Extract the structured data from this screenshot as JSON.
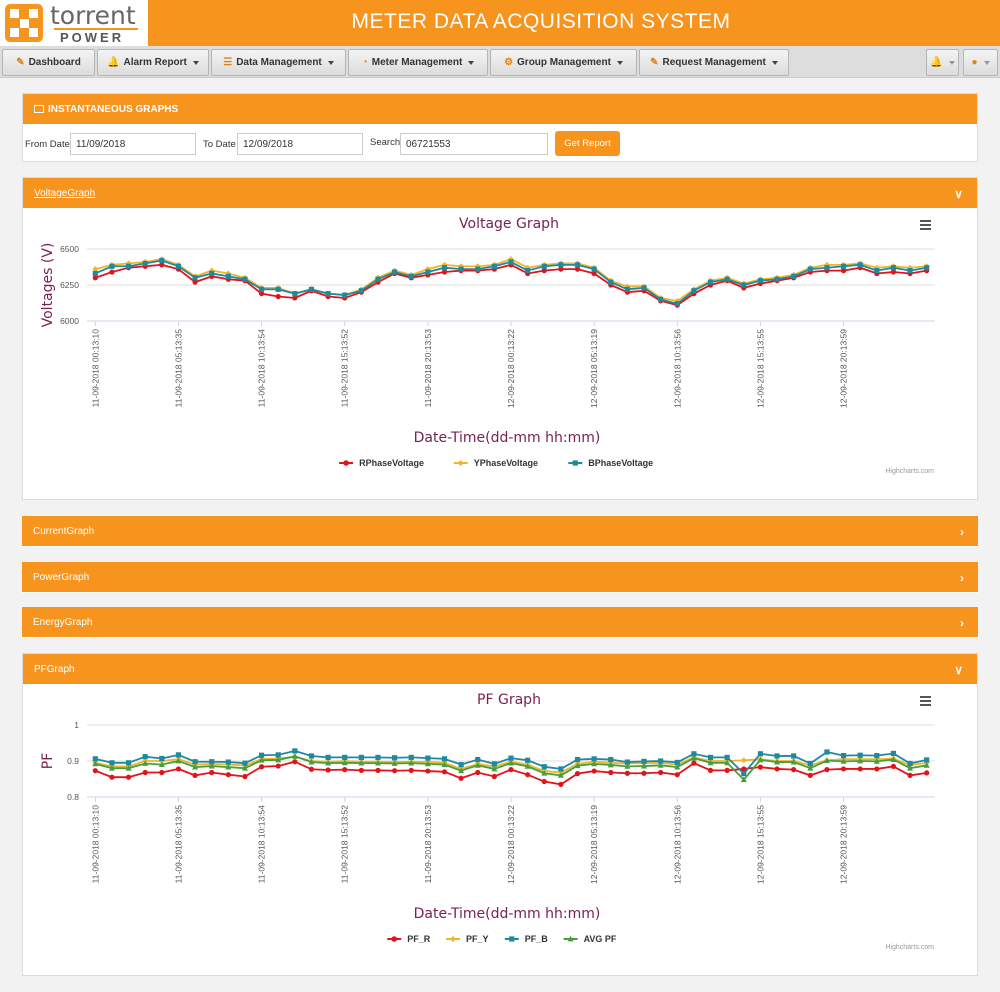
{
  "app": {
    "title": "METER DATA ACQUISITION SYSTEM",
    "logo_word1": "torrent",
    "logo_word2": "POWER"
  },
  "nav": {
    "dashboard": "Dashboard",
    "alarm_report": "Alarm Report",
    "data_management": "Data Management",
    "meter_management": "Meter Management",
    "group_management": "Group Management",
    "request_management": "Request Management"
  },
  "filter": {
    "section_title": "INSTANTANEOUS GRAPHS",
    "from_label": "From Date",
    "from_value": "11/09/2018",
    "to_label": "To Date",
    "to_value": "12/09/2018",
    "search_label": "Search",
    "search_value": "06721553",
    "submit_label": "Get Report"
  },
  "panels": {
    "voltage": "VoltageGraph",
    "current": "CurrentGraph",
    "power": "PowerGraph",
    "energy": "EnergyGraph",
    "pf": "PFGraph"
  },
  "credits": "Highcharts.com",
  "colors": {
    "brand": "#f7941d",
    "series_r": "#e2131a",
    "series_y": "#f0b52a",
    "series_b": "#1e8a9e",
    "series_avg": "#4a9d3f",
    "title": "#7a2154"
  },
  "chart_data": [
    {
      "type": "line",
      "title": "Voltage Graph",
      "xlabel": "Date-Time(dd-mm hh:mm)",
      "ylabel": "Voltages (V)",
      "ylim": [
        6000,
        6500
      ],
      "yticks": [
        6000,
        6250,
        6500
      ],
      "legend": "bottom-center",
      "grid": true,
      "tick_labels": [
        "11-09-2018 00:13:10",
        "11-09-2018 05:13:35",
        "11-09-2018 10:13:54",
        "11-09-2018 15:13:52",
        "11-09-2018 20:13:53",
        "12-09-2018 00:13:22",
        "12-09-2018 05:13:19",
        "12-09-2018 10:13:56",
        "12-09-2018 15:13:55",
        "12-09-2018 20:13:59"
      ],
      "series": [
        {
          "name": "RPhaseVoltage",
          "marker": "circle",
          "values": [
            6300,
            6340,
            6370,
            6380,
            6390,
            6360,
            6270,
            6310,
            6290,
            6280,
            6190,
            6170,
            6160,
            6210,
            6170,
            6160,
            6200,
            6270,
            6330,
            6300,
            6320,
            6340,
            6350,
            6350,
            6360,
            6390,
            6330,
            6350,
            6360,
            6360,
            6330,
            6250,
            6200,
            6210,
            6140,
            6110,
            6190,
            6250,
            6280,
            6230,
            6260,
            6280,
            6300,
            6340,
            6350,
            6350,
            6370,
            6330,
            6340,
            6330,
            6350
          ]
        },
        {
          "name": "YPhaseVoltage",
          "marker": "diamond",
          "values": [
            6360,
            6390,
            6400,
            6410,
            6430,
            6390,
            6310,
            6350,
            6330,
            6300,
            6230,
            6230,
            6190,
            6220,
            6190,
            6180,
            6220,
            6300,
            6350,
            6320,
            6360,
            6390,
            6380,
            6380,
            6390,
            6430,
            6370,
            6390,
            6400,
            6400,
            6370,
            6280,
            6240,
            6240,
            6160,
            6140,
            6220,
            6280,
            6300,
            6260,
            6290,
            6300,
            6320,
            6370,
            6390,
            6390,
            6400,
            6370,
            6380,
            6370,
            6380
          ]
        },
        {
          "name": "BPhaseVoltage",
          "marker": "square",
          "values": [
            6330,
            6380,
            6380,
            6400,
            6420,
            6380,
            6300,
            6330,
            6310,
            6290,
            6220,
            6220,
            6190,
            6220,
            6190,
            6180,
            6210,
            6290,
            6340,
            6310,
            6340,
            6370,
            6360,
            6360,
            6380,
            6410,
            6350,
            6380,
            6390,
            6390,
            6360,
            6270,
            6220,
            6230,
            6150,
            6120,
            6210,
            6270,
            6290,
            6250,
            6280,
            6290,
            6310,
            6360,
            6370,
            6380,
            6390,
            6350,
            6370,
            6350,
            6370
          ]
        }
      ]
    },
    {
      "type": "line",
      "title": "PF Graph",
      "xlabel": "Date-Time(dd-mm hh:mm)",
      "ylabel": "PF",
      "ylim": [
        0.8,
        1
      ],
      "yticks": [
        0.8,
        0.9,
        1
      ],
      "legend": "bottom-center",
      "grid": true,
      "tick_labels": [
        "11-09-2018 00:13:10",
        "11-09-2018 05:13:35",
        "11-09-2018 10:13:54",
        "11-09-2018 15:13:52",
        "11-09-2018 20:13:53",
        "12-09-2018 00:13:22",
        "12-09-2018 05:13:19",
        "12-09-2018 10:13:56",
        "12-09-2018 15:13:55",
        "12-09-2018 20:13:59"
      ],
      "series": [
        {
          "name": "PF_R",
          "marker": "circle",
          "values": [
            0.873,
            0.855,
            0.855,
            0.868,
            0.868,
            0.878,
            0.86,
            0.868,
            0.862,
            0.857,
            0.884,
            0.886,
            0.898,
            0.877,
            0.875,
            0.876,
            0.874,
            0.874,
            0.873,
            0.874,
            0.872,
            0.87,
            0.852,
            0.868,
            0.857,
            0.876,
            0.862,
            0.843,
            0.835,
            0.865,
            0.872,
            0.868,
            0.866,
            0.866,
            0.868,
            0.862,
            0.894,
            0.874,
            0.874,
            0.878,
            0.883,
            0.878,
            0.876,
            0.86,
            0.876,
            0.878,
            0.878,
            0.878,
            0.885,
            0.86,
            0.867
          ]
        },
        {
          "name": "PF_Y",
          "marker": "diamond",
          "values": [
            0.895,
            0.885,
            0.885,
            0.9,
            0.9,
            0.905,
            0.89,
            0.892,
            0.89,
            0.888,
            0.905,
            0.907,
            0.912,
            0.9,
            0.898,
            0.9,
            0.898,
            0.898,
            0.897,
            0.898,
            0.897,
            0.895,
            0.878,
            0.892,
            0.885,
            0.898,
            0.89,
            0.872,
            0.868,
            0.892,
            0.898,
            0.895,
            0.893,
            0.894,
            0.895,
            0.89,
            0.91,
            0.9,
            0.9,
            0.902,
            0.905,
            0.9,
            0.9,
            0.888,
            0.902,
            0.905,
            0.905,
            0.905,
            0.907,
            0.888,
            0.895
          ]
        },
        {
          "name": "PF_B",
          "marker": "square",
          "values": [
            0.906,
            0.895,
            0.895,
            0.912,
            0.907,
            0.917,
            0.898,
            0.898,
            0.897,
            0.894,
            0.916,
            0.917,
            0.928,
            0.914,
            0.91,
            0.91,
            0.91,
            0.91,
            0.909,
            0.91,
            0.908,
            0.906,
            0.89,
            0.904,
            0.892,
            0.908,
            0.902,
            0.884,
            0.878,
            0.904,
            0.906,
            0.904,
            0.897,
            0.899,
            0.9,
            0.896,
            0.92,
            0.91,
            0.91,
            0.865,
            0.92,
            0.914,
            0.914,
            0.893,
            0.925,
            0.915,
            0.916,
            0.915,
            0.921,
            0.893,
            0.903
          ]
        },
        {
          "name": "AVG PF",
          "marker": "triangle",
          "values": [
            0.892,
            0.88,
            0.88,
            0.893,
            0.89,
            0.9,
            0.883,
            0.886,
            0.883,
            0.88,
            0.902,
            0.903,
            0.913,
            0.897,
            0.894,
            0.895,
            0.894,
            0.894,
            0.893,
            0.894,
            0.892,
            0.89,
            0.873,
            0.888,
            0.878,
            0.894,
            0.885,
            0.866,
            0.86,
            0.887,
            0.892,
            0.889,
            0.885,
            0.886,
            0.888,
            0.883,
            0.908,
            0.895,
            0.895,
            0.848,
            0.903,
            0.897,
            0.897,
            0.88,
            0.901,
            0.899,
            0.9,
            0.899,
            0.904,
            0.88,
            0.888
          ]
        }
      ]
    }
  ]
}
